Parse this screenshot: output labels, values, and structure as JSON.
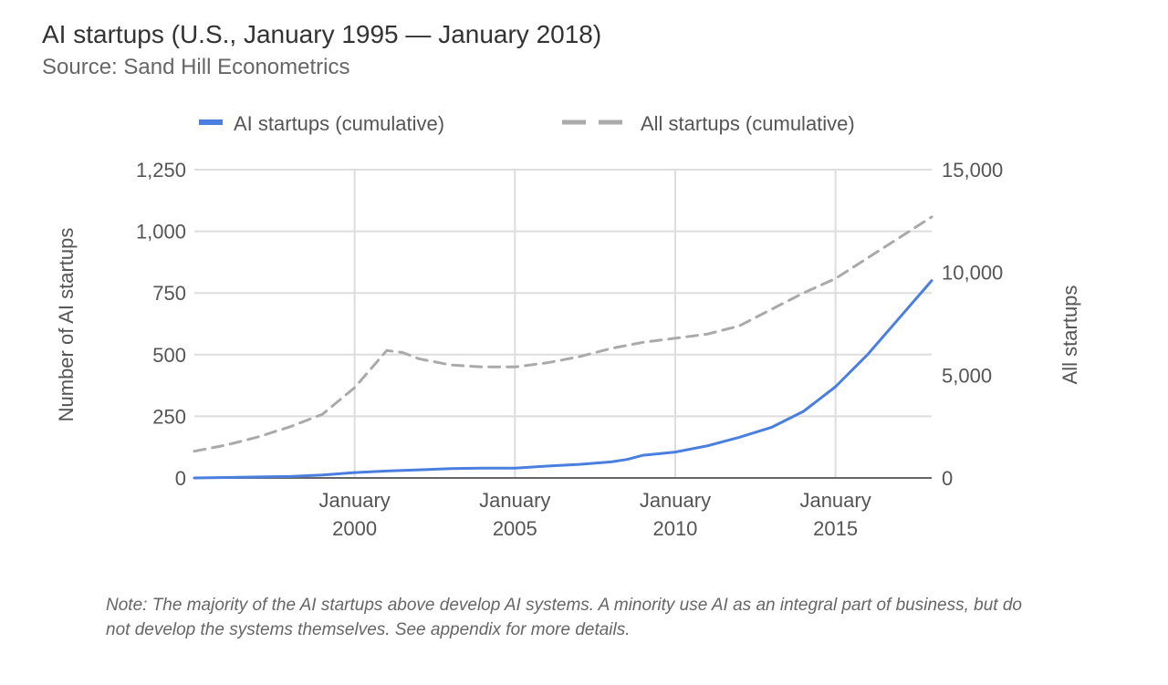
{
  "header": {
    "title": "AI startups (U.S., January 1995 — January 2018)",
    "subtitle": "Source: Sand Hill Econometrics"
  },
  "note": "Note: The majority of the AI startups above develop AI systems. A minority use AI as an integral part of business, but do not develop the systems themselves. See appendix for more details.",
  "colors": {
    "ai_series": "#4a7fe0",
    "all_series": "#aaaaaa",
    "gridline": "#dddddd",
    "baseline": "#666666",
    "axis_text": "#555555"
  },
  "chart_data": {
    "type": "line",
    "title": "AI startups (U.S., January 1995 — January 2018)",
    "subtitle": "Source: Sand Hill Econometrics",
    "xlabel": "",
    "ylabel_left": "Number of AI startups",
    "ylabel_right": "All startups",
    "xlim": [
      1995.0,
      2018.0
    ],
    "ylim_left": [
      0,
      1250
    ],
    "ylim_right": [
      0,
      15000
    ],
    "y_ticks_left": [
      {
        "value": 0,
        "label": "0"
      },
      {
        "value": 250,
        "label": "250"
      },
      {
        "value": 500,
        "label": "500"
      },
      {
        "value": 750,
        "label": "750"
      },
      {
        "value": 1000,
        "label": "1,000"
      },
      {
        "value": 1250,
        "label": "1,250"
      }
    ],
    "y_ticks_right": [
      {
        "value": 0,
        "label": "0"
      },
      {
        "value": 5000,
        "label": "5,000"
      },
      {
        "value": 10000,
        "label": "10,000"
      },
      {
        "value": 15000,
        "label": "15,000"
      }
    ],
    "x_ticks": [
      {
        "value": 2000.0,
        "line1": "January",
        "line2": "2000"
      },
      {
        "value": 2005.0,
        "line1": "January",
        "line2": "2005"
      },
      {
        "value": 2010.0,
        "line1": "January",
        "line2": "2010"
      },
      {
        "value": 2015.0,
        "line1": "January",
        "line2": "2015"
      }
    ],
    "grid": true,
    "legend_position": "top",
    "series": [
      {
        "name": "AI startups (cumulative)",
        "axis": "left",
        "style": "solid",
        "x": [
          1995.0,
          1996.0,
          1997.0,
          1998.0,
          1999.0,
          2000.0,
          2001.0,
          2002.0,
          2003.0,
          2004.0,
          2005.0,
          2006.0,
          2007.0,
          2008.0,
          2008.5,
          2009.0,
          2010.0,
          2011.0,
          2012.0,
          2013.0,
          2014.0,
          2015.0,
          2016.0,
          2017.0,
          2018.0
        ],
        "values": [
          0,
          2,
          4,
          6,
          12,
          22,
          28,
          33,
          38,
          40,
          40,
          48,
          55,
          65,
          75,
          92,
          105,
          130,
          165,
          205,
          270,
          370,
          500,
          650,
          800
        ]
      },
      {
        "name": "All startups (cumulative)",
        "axis": "right",
        "style": "dashed",
        "x": [
          1995.0,
          1996.0,
          1997.0,
          1998.0,
          1999.0,
          2000.0,
          2001.0,
          2001.5,
          2002.0,
          2003.0,
          2004.0,
          2005.0,
          2006.0,
          2007.0,
          2008.0,
          2009.0,
          2010.0,
          2011.0,
          2012.0,
          2013.0,
          2014.0,
          2015.0,
          2016.0,
          2017.0,
          2018.0
        ],
        "values": [
          1300,
          1600,
          2000,
          2500,
          3100,
          4400,
          6200,
          6100,
          5800,
          5500,
          5400,
          5400,
          5600,
          5900,
          6300,
          6600,
          6800,
          7000,
          7400,
          8200,
          9000,
          9700,
          10700,
          11700,
          12700
        ]
      }
    ]
  }
}
